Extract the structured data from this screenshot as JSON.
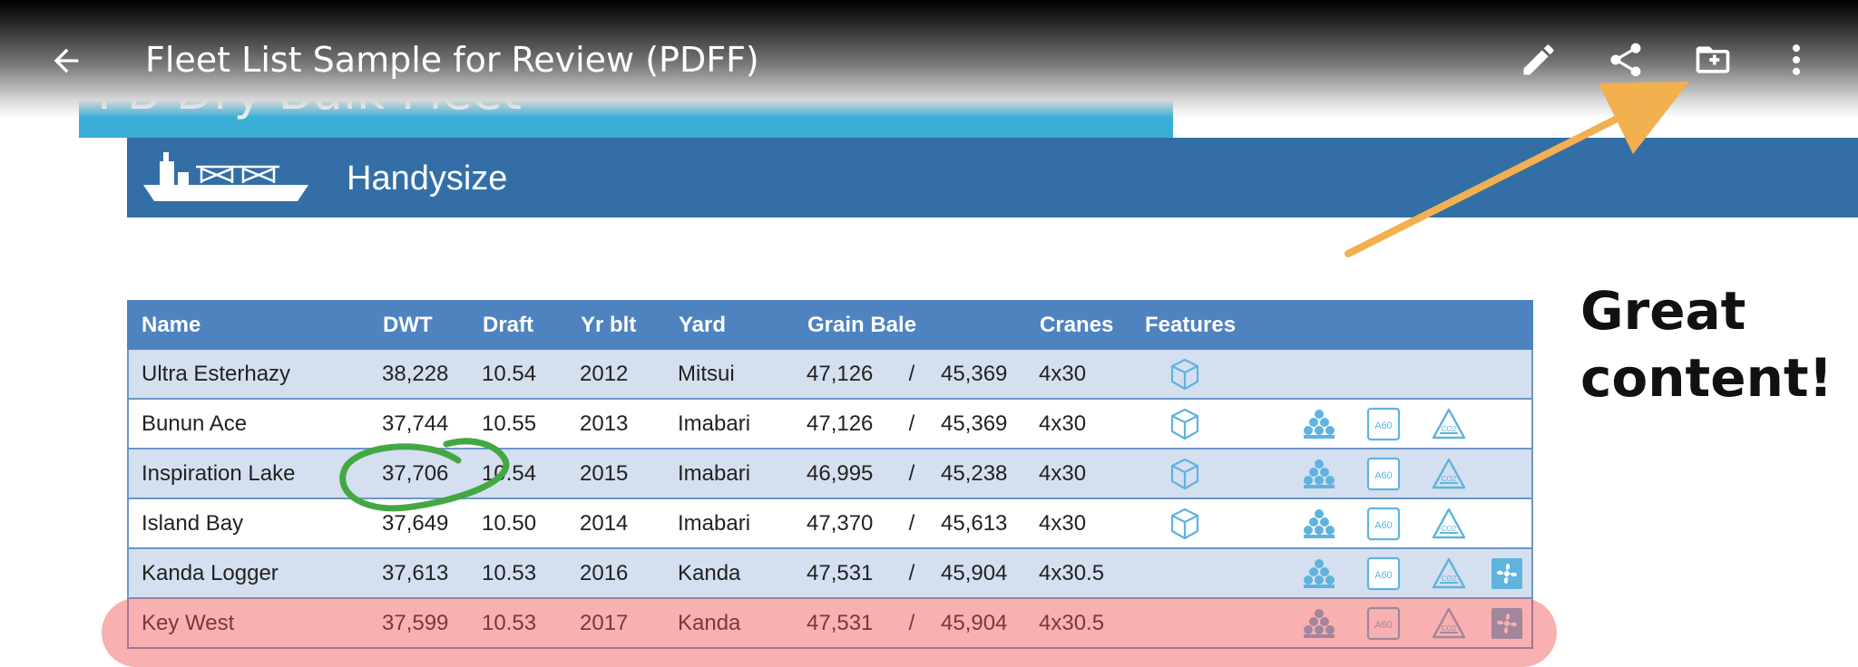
{
  "toolbar": {
    "title": "Fleet List Sample for Review (PDFF)",
    "back_icon": "back-arrow-icon",
    "actions": [
      "edit-icon",
      "share-icon",
      "add-to-folder-icon",
      "more-vert-icon"
    ]
  },
  "document": {
    "banner_title": "PB Dry Bulk Fleet",
    "section_title": "Handysize",
    "section_icon": "bulk-carrier-icon",
    "table": {
      "columns": [
        "Name",
        "DWT",
        "Draft",
        "Yr blt",
        "Yard",
        "Grain Bale",
        "Cranes",
        "Features"
      ],
      "slash": "/",
      "rows": [
        {
          "name": "Ultra Esterhazy",
          "dwt": "38,228",
          "draft": "10.54",
          "yr": "2012",
          "yard": "Mitsui",
          "grain": "47,126",
          "bale": "45,369",
          "cranes": "4x30"
        },
        {
          "name": "Bunun Ace",
          "dwt": "37,744",
          "draft": "10.55",
          "yr": "2013",
          "yard": "Imabari",
          "grain": "47,126",
          "bale": "45,369",
          "cranes": "4x30"
        },
        {
          "name": "Inspiration Lake",
          "dwt": "37,706",
          "draft": "10.54",
          "yr": "2015",
          "yard": "Imabari",
          "grain": "46,995",
          "bale": "45,238",
          "cranes": "4x30"
        },
        {
          "name": "Island Bay",
          "dwt": "37,649",
          "draft": "10.50",
          "yr": "2014",
          "yard": "Imabari",
          "grain": "47,370",
          "bale": "45,613",
          "cranes": "4x30"
        },
        {
          "name": "Kanda Logger",
          "dwt": "37,613",
          "draft": "10.53",
          "yr": "2016",
          "yard": "Kanda",
          "grain": "47,531",
          "bale": "45,904",
          "cranes": "4x30.5"
        },
        {
          "name": "Key West",
          "dwt": "37,599",
          "draft": "10.53",
          "yr": "2017",
          "yard": "Kanda",
          "grain": "47,531",
          "bale": "45,904",
          "cranes": "4x30.5"
        }
      ],
      "feature_labels": {
        "a60": "A60",
        "co2": "CO2"
      }
    }
  },
  "annotations": {
    "callout_line1": "Great",
    "callout_line2": "content!",
    "colors": {
      "circle": "#43a843",
      "arrow": "#f2b04e",
      "highlight": "#f25050"
    }
  }
}
